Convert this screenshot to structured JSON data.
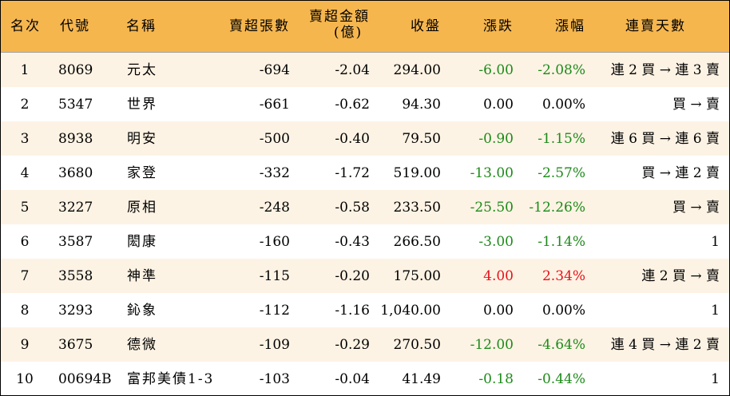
{
  "colors": {
    "header_bg": "#f6b64e",
    "alt_row_bg": "#fdf3e4",
    "down": "#1d8a1a",
    "up": "#e8121a"
  },
  "headers": {
    "rank": "名次",
    "code": "代號",
    "name": "名稱",
    "sheets": "賣超張數",
    "amount_label": "賣超金額",
    "amount_unit": "(億)",
    "close": "收盤",
    "change": "漲跌",
    "change_pct": "漲幅",
    "streak": "連賣天數"
  },
  "rows": [
    {
      "rank": "1",
      "code": "8069",
      "name": "元太",
      "sheets": "-694",
      "amount": "-2.04",
      "close": "294.00",
      "change": "-6.00",
      "change_pct": "-2.08%",
      "trend": "down",
      "streak": "連 2 買 → 連 3 賣"
    },
    {
      "rank": "2",
      "code": "5347",
      "name": "世界",
      "sheets": "-661",
      "amount": "-0.62",
      "close": "94.30",
      "change": "0.00",
      "change_pct": "0.00%",
      "trend": "flat",
      "streak": "買 → 賣"
    },
    {
      "rank": "3",
      "code": "8938",
      "name": "明安",
      "sheets": "-500",
      "amount": "-0.40",
      "close": "79.50",
      "change": "-0.90",
      "change_pct": "-1.15%",
      "trend": "down",
      "streak": "連 6 買 → 連 6 賣"
    },
    {
      "rank": "4",
      "code": "3680",
      "name": "家登",
      "sheets": "-332",
      "amount": "-1.72",
      "close": "519.00",
      "change": "-13.00",
      "change_pct": "-2.57%",
      "trend": "down",
      "streak": "買 → 連 2 賣"
    },
    {
      "rank": "5",
      "code": "3227",
      "name": "原相",
      "sheets": "-248",
      "amount": "-0.58",
      "close": "233.50",
      "change": "-25.50",
      "change_pct": "-12.26%",
      "trend": "down",
      "streak": "買 → 賣"
    },
    {
      "rank": "6",
      "code": "3587",
      "name": "閎康",
      "sheets": "-160",
      "amount": "-0.43",
      "close": "266.50",
      "change": "-3.00",
      "change_pct": "-1.14%",
      "trend": "down",
      "streak": "1"
    },
    {
      "rank": "7",
      "code": "3558",
      "name": "神準",
      "sheets": "-115",
      "amount": "-0.20",
      "close": "175.00",
      "change": "4.00",
      "change_pct": "2.34%",
      "trend": "up",
      "streak": "連 2 買 → 賣"
    },
    {
      "rank": "8",
      "code": "3293",
      "name": "鈊象",
      "sheets": "-112",
      "amount": "-1.16",
      "close": "1,040.00",
      "change": "0.00",
      "change_pct": "0.00%",
      "trend": "flat",
      "streak": "1"
    },
    {
      "rank": "9",
      "code": "3675",
      "name": "德微",
      "sheets": "-109",
      "amount": "-0.29",
      "close": "270.50",
      "change": "-12.00",
      "change_pct": "-4.64%",
      "trend": "down",
      "streak": "連 4 買 → 連 2 賣"
    },
    {
      "rank": "10",
      "code": "00694B",
      "name": "富邦美債1-3",
      "sheets": "-103",
      "amount": "-0.04",
      "close": "41.49",
      "change": "-0.18",
      "change_pct": "-0.44%",
      "trend": "down",
      "streak": "1"
    }
  ]
}
